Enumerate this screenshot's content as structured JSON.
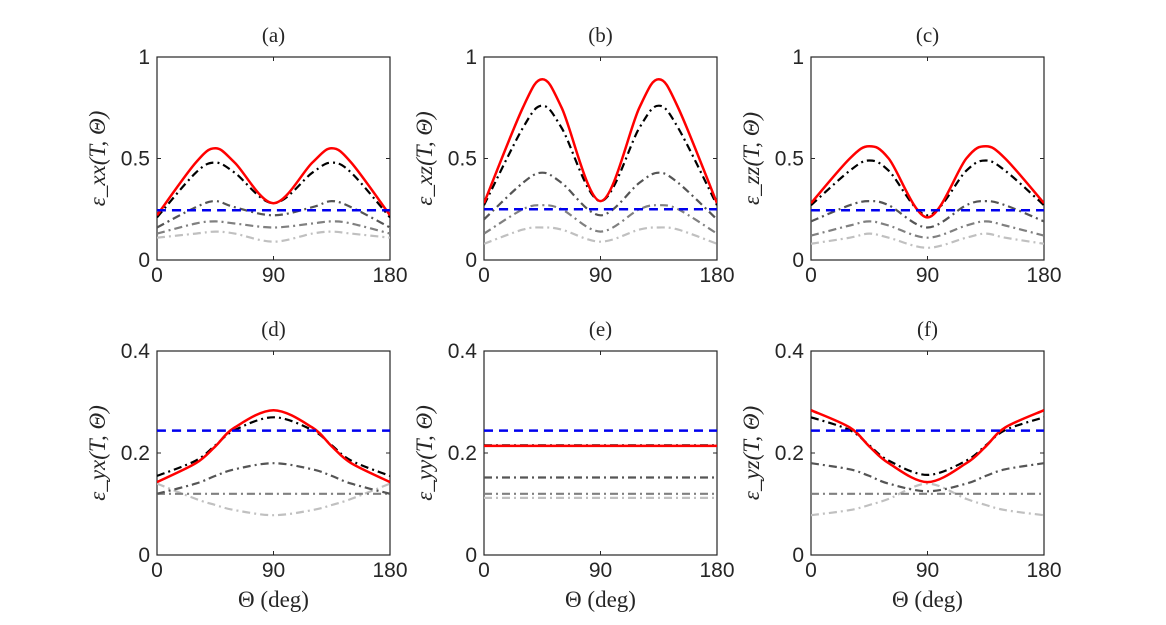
{
  "chart_data": [
    {
      "type": "line",
      "id": "a",
      "title": "(a)",
      "ylabel": "ε_xx(T, Θ)",
      "xlabel": "",
      "xlim": [
        0,
        180
      ],
      "ylim": [
        0,
        1
      ],
      "xticks": [
        "0",
        "90",
        "180"
      ],
      "yticks": [
        "0",
        "0.5",
        "1"
      ],
      "ytick_values": [
        0,
        0.5,
        1
      ],
      "x": [
        0,
        30,
        45,
        60,
        90,
        120,
        135,
        150,
        180
      ],
      "series": [
        {
          "name": "red-solid",
          "color": "#ff0000",
          "dash": "",
          "width": 2.5,
          "values": [
            0.22,
            0.48,
            0.55,
            0.48,
            0.28,
            0.48,
            0.55,
            0.48,
            0.22
          ]
        },
        {
          "name": "black-dashdot",
          "color": "#000000",
          "dash": "8,4,2,4",
          "width": 2.2,
          "values": [
            0.21,
            0.43,
            0.48,
            0.43,
            0.28,
            0.43,
            0.48,
            0.43,
            0.21
          ]
        },
        {
          "name": "darkgray-dashdot",
          "color": "#555555",
          "dash": "8,4,2,4",
          "width": 2.2,
          "values": [
            0.16,
            0.26,
            0.29,
            0.26,
            0.22,
            0.26,
            0.29,
            0.26,
            0.16
          ]
        },
        {
          "name": "gray-dashdot",
          "color": "#808080",
          "dash": "8,4,2,4",
          "width": 2.2,
          "values": [
            0.13,
            0.18,
            0.19,
            0.18,
            0.16,
            0.18,
            0.19,
            0.18,
            0.13
          ]
        },
        {
          "name": "lightgray-dashdot",
          "color": "#c0c0c0",
          "dash": "8,4,2,4",
          "width": 2.2,
          "values": [
            0.11,
            0.13,
            0.14,
            0.13,
            0.09,
            0.13,
            0.14,
            0.13,
            0.11
          ]
        },
        {
          "name": "blue-dashed",
          "color": "#0000ee",
          "dash": "9,6",
          "width": 2.5,
          "values": [
            0.245,
            0.245,
            0.245,
            0.245,
            0.245,
            0.245,
            0.245,
            0.245,
            0.245
          ]
        }
      ]
    },
    {
      "type": "line",
      "id": "b",
      "title": "(b)",
      "ylabel": "ε_xz(T, Θ)",
      "xlabel": "",
      "xlim": [
        0,
        180
      ],
      "ylim": [
        0,
        1
      ],
      "xticks": [
        "0",
        "90",
        "180"
      ],
      "yticks": [
        "0",
        "0.5",
        "1"
      ],
      "ytick_values": [
        0,
        0.5,
        1
      ],
      "x": [
        0,
        30,
        45,
        60,
        90,
        120,
        135,
        150,
        180
      ],
      "series": [
        {
          "name": "red-solid",
          "color": "#ff0000",
          "dash": "",
          "width": 2.5,
          "values": [
            0.28,
            0.75,
            0.89,
            0.75,
            0.29,
            0.75,
            0.89,
            0.75,
            0.28
          ]
        },
        {
          "name": "black-dashdot",
          "color": "#000000",
          "dash": "8,4,2,4",
          "width": 2.2,
          "values": [
            0.27,
            0.65,
            0.76,
            0.65,
            0.29,
            0.65,
            0.76,
            0.65,
            0.27
          ]
        },
        {
          "name": "darkgray-dashdot",
          "color": "#555555",
          "dash": "8,4,2,4",
          "width": 2.2,
          "values": [
            0.2,
            0.38,
            0.43,
            0.38,
            0.22,
            0.38,
            0.43,
            0.38,
            0.2
          ]
        },
        {
          "name": "gray-dashdot",
          "color": "#808080",
          "dash": "8,4,2,4",
          "width": 2.2,
          "values": [
            0.13,
            0.25,
            0.27,
            0.25,
            0.14,
            0.25,
            0.27,
            0.25,
            0.13
          ]
        },
        {
          "name": "lightgray-dashdot",
          "color": "#c0c0c0",
          "dash": "8,4,2,4",
          "width": 2.2,
          "values": [
            0.08,
            0.15,
            0.16,
            0.15,
            0.09,
            0.15,
            0.16,
            0.15,
            0.08
          ]
        },
        {
          "name": "blue-dashed",
          "color": "#0000ee",
          "dash": "9,6",
          "width": 2.5,
          "values": [
            0.25,
            0.25,
            0.25,
            0.25,
            0.25,
            0.25,
            0.25,
            0.25,
            0.25
          ]
        }
      ]
    },
    {
      "type": "line",
      "id": "c",
      "title": "(c)",
      "ylabel": "ε_zz(T, Θ)",
      "xlabel": "",
      "xlim": [
        0,
        180
      ],
      "ylim": [
        0,
        1
      ],
      "xticks": [
        "0",
        "90",
        "180"
      ],
      "yticks": [
        "0",
        "0.5",
        "1"
      ],
      "ytick_values": [
        0,
        0.5,
        1
      ],
      "x": [
        0,
        30,
        45,
        60,
        90,
        120,
        135,
        150,
        180
      ],
      "series": [
        {
          "name": "red-solid",
          "color": "#ff0000",
          "dash": "",
          "width": 2.5,
          "values": [
            0.28,
            0.5,
            0.56,
            0.5,
            0.21,
            0.5,
            0.56,
            0.5,
            0.28
          ]
        },
        {
          "name": "black-dashdot",
          "color": "#000000",
          "dash": "8,4,2,4",
          "width": 2.2,
          "values": [
            0.27,
            0.44,
            0.49,
            0.44,
            0.22,
            0.44,
            0.49,
            0.44,
            0.27
          ]
        },
        {
          "name": "darkgray-dashdot",
          "color": "#555555",
          "dash": "8,4,2,4",
          "width": 2.2,
          "values": [
            0.19,
            0.27,
            0.29,
            0.27,
            0.16,
            0.27,
            0.29,
            0.27,
            0.19
          ]
        },
        {
          "name": "gray-dashdot",
          "color": "#808080",
          "dash": "8,4,2,4",
          "width": 2.2,
          "values": [
            0.12,
            0.17,
            0.19,
            0.17,
            0.11,
            0.17,
            0.19,
            0.17,
            0.12
          ]
        },
        {
          "name": "lightgray-dashdot",
          "color": "#c0c0c0",
          "dash": "8,4,2,4",
          "width": 2.2,
          "values": [
            0.08,
            0.11,
            0.13,
            0.11,
            0.06,
            0.11,
            0.13,
            0.11,
            0.08
          ]
        },
        {
          "name": "blue-dashed",
          "color": "#0000ee",
          "dash": "9,6",
          "width": 2.5,
          "values": [
            0.245,
            0.245,
            0.245,
            0.245,
            0.245,
            0.245,
            0.245,
            0.245,
            0.245
          ]
        }
      ]
    },
    {
      "type": "line",
      "id": "d",
      "title": "(d)",
      "ylabel": "ε_yx(T, Θ)",
      "xlabel": "Θ (deg)",
      "xlim": [
        0,
        180
      ],
      "ylim": [
        0,
        0.4
      ],
      "xticks": [
        "0",
        "90",
        "180"
      ],
      "yticks": [
        "0",
        "0.2",
        "0.4"
      ],
      "ytick_values": [
        0,
        0.2,
        0.4
      ],
      "x": [
        0,
        30,
        45,
        60,
        90,
        120,
        135,
        150,
        180
      ],
      "series": [
        {
          "name": "red-solid",
          "color": "#ff0000",
          "dash": "",
          "width": 2.5,
          "values": [
            0.143,
            0.18,
            0.213,
            0.25,
            0.284,
            0.25,
            0.213,
            0.18,
            0.143
          ]
        },
        {
          "name": "black-dashdot",
          "color": "#000000",
          "dash": "8,4,2,4",
          "width": 2.2,
          "values": [
            0.155,
            0.185,
            0.215,
            0.245,
            0.27,
            0.245,
            0.215,
            0.185,
            0.155
          ]
        },
        {
          "name": "darkgray-dashdot",
          "color": "#555555",
          "dash": "8,4,2,4",
          "width": 2.2,
          "values": [
            0.12,
            0.14,
            0.155,
            0.168,
            0.18,
            0.168,
            0.155,
            0.14,
            0.12
          ]
        },
        {
          "name": "gray-dashdot",
          "color": "#808080",
          "dash": "8,4,2,4",
          "width": 2.2,
          "values": [
            0.12,
            0.12,
            0.12,
            0.12,
            0.12,
            0.12,
            0.12,
            0.12,
            0.12
          ]
        },
        {
          "name": "lightgray-dashdot",
          "color": "#c0c0c0",
          "dash": "8,4,2,4",
          "width": 2.2,
          "values": [
            0.14,
            0.11,
            0.098,
            0.088,
            0.078,
            0.088,
            0.098,
            0.11,
            0.14
          ]
        },
        {
          "name": "blue-dashed",
          "color": "#0000ee",
          "dash": "9,6",
          "width": 2.5,
          "values": [
            0.244,
            0.244,
            0.244,
            0.244,
            0.244,
            0.244,
            0.244,
            0.244,
            0.244
          ]
        }
      ]
    },
    {
      "type": "line",
      "id": "e",
      "title": "(e)",
      "ylabel": "ε_yy(T, Θ)",
      "xlabel": "Θ (deg)",
      "xlim": [
        0,
        180
      ],
      "ylim": [
        0,
        0.4
      ],
      "xticks": [
        "0",
        "90",
        "180"
      ],
      "yticks": [
        "0",
        "0.2",
        "0.4"
      ],
      "ytick_values": [
        0,
        0.2,
        0.4
      ],
      "x": [
        0,
        180
      ],
      "series": [
        {
          "name": "red-solid",
          "color": "#ff0000",
          "dash": "",
          "width": 2.5,
          "values": [
            0.214,
            0.214
          ]
        },
        {
          "name": "black-dashdot",
          "color": "#000000",
          "dash": "8,4,2,4",
          "width": 2.2,
          "values": [
            0.215,
            0.215
          ]
        },
        {
          "name": "darkgray-dashdot",
          "color": "#555555",
          "dash": "8,4,2,4",
          "width": 2.2,
          "values": [
            0.152,
            0.152
          ]
        },
        {
          "name": "gray-dashdot",
          "color": "#808080",
          "dash": "8,4,2,4",
          "width": 2.2,
          "values": [
            0.12,
            0.12
          ]
        },
        {
          "name": "lightgray-dashdot",
          "color": "#c0c0c0",
          "dash": "8,4,2,4",
          "width": 2.2,
          "values": [
            0.112,
            0.112
          ]
        },
        {
          "name": "blue-dashed",
          "color": "#0000ee",
          "dash": "9,6",
          "width": 2.5,
          "values": [
            0.244,
            0.244
          ]
        }
      ]
    },
    {
      "type": "line",
      "id": "f",
      "title": "(f)",
      "ylabel": "ε_yz(T, Θ)",
      "xlabel": "Θ (deg)",
      "xlim": [
        0,
        180
      ],
      "ylim": [
        0,
        0.4
      ],
      "xticks": [
        "0",
        "90",
        "180"
      ],
      "yticks": [
        "0",
        "0.2",
        "0.4"
      ],
      "ytick_values": [
        0,
        0.2,
        0.4
      ],
      "x": [
        0,
        30,
        45,
        60,
        90,
        120,
        135,
        150,
        180
      ],
      "series": [
        {
          "name": "red-solid",
          "color": "#ff0000",
          "dash": "",
          "width": 2.5,
          "values": [
            0.284,
            0.25,
            0.213,
            0.18,
            0.143,
            0.18,
            0.213,
            0.25,
            0.284
          ]
        },
        {
          "name": "black-dashdot",
          "color": "#000000",
          "dash": "8,4,2,4",
          "width": 2.2,
          "values": [
            0.27,
            0.245,
            0.215,
            0.185,
            0.157,
            0.185,
            0.215,
            0.245,
            0.27
          ]
        },
        {
          "name": "darkgray-dashdot",
          "color": "#555555",
          "dash": "8,4,2,4",
          "width": 2.2,
          "values": [
            0.18,
            0.168,
            0.155,
            0.14,
            0.125,
            0.14,
            0.155,
            0.168,
            0.18
          ]
        },
        {
          "name": "gray-dashdot",
          "color": "#808080",
          "dash": "8,4,2,4",
          "width": 2.2,
          "values": [
            0.12,
            0.12,
            0.12,
            0.12,
            0.12,
            0.12,
            0.12,
            0.12,
            0.12
          ]
        },
        {
          "name": "lightgray-dashdot",
          "color": "#c0c0c0",
          "dash": "8,4,2,4",
          "width": 2.2,
          "values": [
            0.078,
            0.088,
            0.098,
            0.11,
            0.14,
            0.11,
            0.098,
            0.088,
            0.078
          ]
        },
        {
          "name": "blue-dashed",
          "color": "#0000ee",
          "dash": "9,6",
          "width": 2.5,
          "values": [
            0.244,
            0.244,
            0.244,
            0.244,
            0.244,
            0.244,
            0.244,
            0.244,
            0.244
          ]
        }
      ]
    }
  ]
}
